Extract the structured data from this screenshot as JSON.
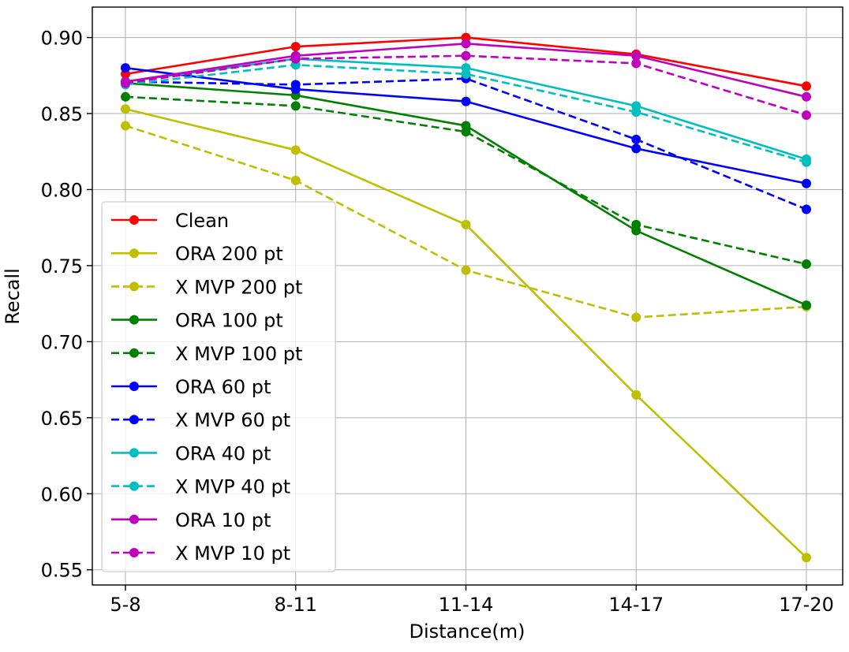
{
  "chart_data": {
    "type": "line",
    "xlabel": "Distance(m)",
    "ylabel": "Recall",
    "categories": [
      "5-8",
      "8-11",
      "11-14",
      "14-17",
      "17-20"
    ],
    "ylim": [
      0.54,
      0.92
    ],
    "yticks": [
      0.55,
      0.6,
      0.65,
      0.7,
      0.75,
      0.8,
      0.85,
      0.9
    ],
    "ytick_labels": [
      "0.55",
      "0.60",
      "0.65",
      "0.70",
      "0.75",
      "0.80",
      "0.85",
      "0.90"
    ],
    "grid": true,
    "legend_position": "left",
    "series": [
      {
        "name": "Clean",
        "color": "#ff0000",
        "dash": "solid",
        "values": [
          0.876,
          0.894,
          0.9,
          0.889,
          0.868
        ]
      },
      {
        "name": "ORA 200 pt",
        "color": "#bfbf00",
        "dash": "solid",
        "values": [
          0.853,
          0.826,
          0.777,
          0.665,
          0.558
        ]
      },
      {
        "name": "X MVP 200 pt",
        "color": "#bfbf00",
        "dash": "dashed",
        "values": [
          0.842,
          0.806,
          0.747,
          0.716,
          0.723
        ]
      },
      {
        "name": "ORA 100 pt",
        "color": "#008000",
        "dash": "solid",
        "values": [
          0.87,
          0.862,
          0.842,
          0.773,
          0.724
        ]
      },
      {
        "name": "X MVP 100 pt",
        "color": "#008000",
        "dash": "dashed",
        "values": [
          0.861,
          0.855,
          0.838,
          0.777,
          0.751
        ]
      },
      {
        "name": "ORA 60 pt",
        "color": "#0000ff",
        "dash": "solid",
        "values": [
          0.88,
          0.866,
          0.858,
          0.827,
          0.804
        ]
      },
      {
        "name": "X MVP 60 pt",
        "color": "#0000ff",
        "dash": "dashed",
        "values": [
          0.871,
          0.869,
          0.873,
          0.833,
          0.787
        ]
      },
      {
        "name": "ORA 40 pt",
        "color": "#00bfbf",
        "dash": "solid",
        "values": [
          0.871,
          0.886,
          0.88,
          0.855,
          0.82
        ]
      },
      {
        "name": "X MVP 40 pt",
        "color": "#00bfbf",
        "dash": "dashed",
        "values": [
          0.869,
          0.882,
          0.876,
          0.851,
          0.818
        ]
      },
      {
        "name": "ORA 10 pt",
        "color": "#bf00bf",
        "dash": "solid",
        "values": [
          0.871,
          0.888,
          0.896,
          0.888,
          0.861
        ]
      },
      {
        "name": "X MVP 10 pt",
        "color": "#bf00bf",
        "dash": "dashed",
        "values": [
          0.87,
          0.886,
          0.888,
          0.883,
          0.849
        ]
      }
    ]
  }
}
